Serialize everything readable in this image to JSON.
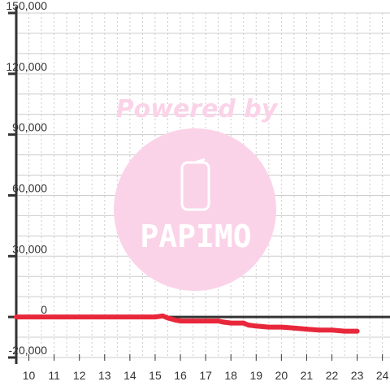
{
  "chart_data": {
    "type": "line",
    "title": "",
    "xlabel": "",
    "ylabel": "",
    "xlim": [
      9.5,
      24.3
    ],
    "ylim": [
      -20000,
      150000
    ],
    "x_ticks": [
      10,
      11,
      12,
      13,
      14,
      15,
      16,
      17,
      18,
      19,
      20,
      21,
      22,
      23,
      24
    ],
    "x_tick_labels": [
      "10",
      "11",
      "12",
      "13",
      "14",
      "15",
      "16",
      "17",
      "18",
      "19",
      "20",
      "21",
      "22",
      "23",
      "24"
    ],
    "y_ticks": [
      -20000,
      0,
      30000,
      60000,
      90000,
      120000,
      150000
    ],
    "y_tick_labels": [
      "-20,000",
      "0",
      "30,000",
      "60,000",
      "90,000",
      "120,000",
      "150,000"
    ],
    "grid": true,
    "series": [
      {
        "color": "#e8283a",
        "x": [
          9.5,
          15.0,
          15.3,
          15.5,
          15.8,
          16.0,
          16.5,
          17.0,
          17.5,
          17.7,
          18.0,
          18.5,
          18.7,
          19.0,
          19.5,
          20.0,
          20.5,
          21.0,
          21.5,
          22.0,
          22.5,
          23.0
        ],
        "y": [
          0,
          0,
          500,
          -500,
          -1500,
          -2000,
          -2000,
          -2000,
          -2000,
          -2500,
          -3000,
          -3000,
          -4000,
          -4500,
          -5000,
          -5000,
          -5500,
          -6000,
          -6500,
          -6500,
          -7000,
          -7000
        ]
      }
    ]
  },
  "watermark": {
    "text": "Powered by",
    "logo": "PAPIMO",
    "color": "#fbd3e8"
  },
  "colors": {
    "axis": "#333333",
    "grid": "#cccccc",
    "background": "#ffffff"
  }
}
